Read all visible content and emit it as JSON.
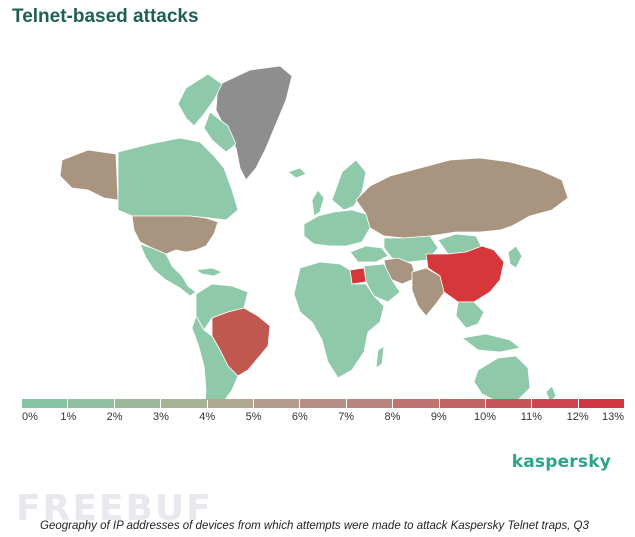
{
  "title": "Telnet-based attacks",
  "brand": "kaspersky",
  "watermark": "FREEBUF",
  "caption": "Geography of IP addresses of devices from which attempts were made to attack Kaspersky Telnet traps, Q3",
  "scale": {
    "labels": [
      "0%",
      "1%",
      "2%",
      "3%",
      "4%",
      "5%",
      "6%",
      "7%",
      "8%",
      "9%",
      "10%",
      "11%",
      "12%",
      "13%"
    ],
    "colors": [
      "#86c4a6",
      "#8fbf9f",
      "#9bb99a",
      "#a7b395",
      "#b1a890",
      "#b49c8c",
      "#b58f86",
      "#b9837e",
      "#bd7471",
      "#c26466",
      "#c7555b",
      "#cc4550",
      "#d03743"
    ]
  },
  "map_colors": {
    "low": "#8ec9aa",
    "medium": "#a8947f",
    "high": "#c0584f",
    "top": "#d6373a",
    "nodata": "#8e8e8e"
  }
}
